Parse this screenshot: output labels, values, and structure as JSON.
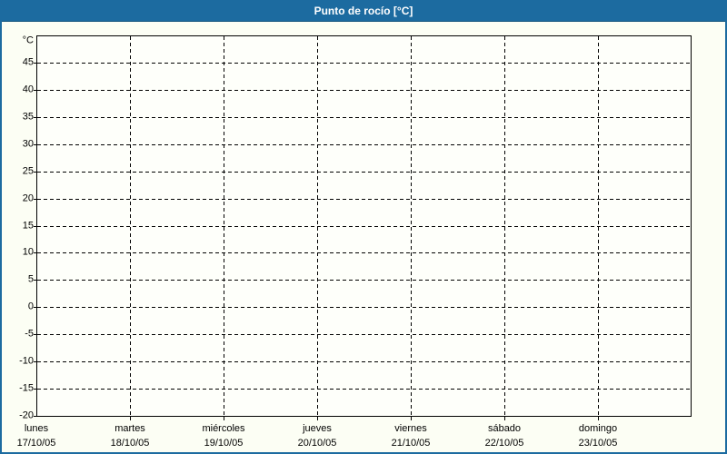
{
  "window": {
    "title": "Punto de rocío [°C]"
  },
  "colors": {
    "titlebar_bg": "#1C6BA0",
    "titlebar_text": "#FFFFFF",
    "window_border": "#1C6BA0",
    "background": "#FCFEF4",
    "plot_background": "#FEFFFA",
    "grid_line": "#000000",
    "axis_text": "#000000"
  },
  "chart_data": {
    "type": "line",
    "title": "Punto de rocío [°C]",
    "ylabel": "°C",
    "ylim": [
      -20,
      50
    ],
    "yticks": [
      45,
      40,
      35,
      30,
      25,
      20,
      15,
      10,
      5,
      0,
      -5,
      -10,
      -15,
      -20
    ],
    "grid": "dashed",
    "legend": "none",
    "x_categories": [
      {
        "day": "lunes",
        "date": "17/10/05"
      },
      {
        "day": "martes",
        "date": "18/10/05"
      },
      {
        "day": "miércoles",
        "date": "19/10/05"
      },
      {
        "day": "jueves",
        "date": "20/10/05"
      },
      {
        "day": "viernes",
        "date": "21/10/05"
      },
      {
        "day": "sábado",
        "date": "22/10/05"
      },
      {
        "day": "domingo",
        "date": "23/10/05"
      }
    ],
    "series": []
  }
}
